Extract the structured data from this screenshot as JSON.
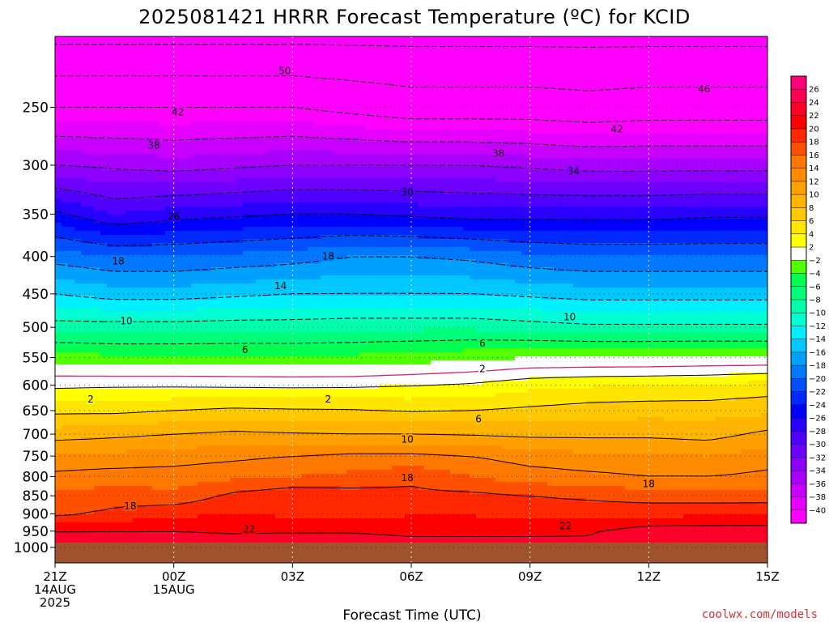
{
  "chart_data": {
    "type": "heatmap",
    "title": "2025081421 HRRR Forecast Temperature (ºC) for KCID",
    "xlabel": "Forecast Time (UTC)",
    "ylabel": "",
    "x_ticks": [
      {
        "hour": 0,
        "lines": [
          "21Z",
          "14AUG",
          "2025"
        ]
      },
      {
        "hour": 3,
        "lines": [
          "00Z",
          "15AUG"
        ]
      },
      {
        "hour": 6,
        "lines": [
          "03Z"
        ]
      },
      {
        "hour": 9,
        "lines": [
          "06Z"
        ]
      },
      {
        "hour": 12,
        "lines": [
          "09Z"
        ]
      },
      {
        "hour": 15,
        "lines": [
          "12Z"
        ]
      },
      {
        "hour": 18,
        "lines": [
          "15Z"
        ]
      }
    ],
    "xlim": [
      0,
      18
    ],
    "y_ticks": [
      250,
      300,
      350,
      400,
      450,
      500,
      550,
      600,
      650,
      700,
      750,
      800,
      850,
      900,
      950,
      1000
    ],
    "ylim": [
      1050,
      200
    ],
    "y_scale": "log-pressure",
    "grid": true,
    "surface_pressure": 985,
    "colorbar": {
      "levels": [
        -42,
        -40,
        -38,
        -36,
        -34,
        -32,
        -30,
        -28,
        -26,
        -24,
        -22,
        -20,
        -18,
        -16,
        -14,
        -12,
        -10,
        -8,
        -6,
        -4,
        -2,
        2,
        4,
        6,
        8,
        10,
        12,
        14,
        16,
        18,
        20,
        22,
        24,
        26,
        28
      ],
      "tick_labels": [
        "-40",
        "-38",
        "-36",
        "-34",
        "-32",
        "-30",
        "-28",
        "-26",
        "-24",
        "-22",
        "-20",
        "-18",
        "-16",
        "-14",
        "-12",
        "-10",
        "-8",
        "-6",
        "-4",
        "-2",
        "2",
        "4",
        "6",
        "8",
        "10",
        "12",
        "14",
        "16",
        "18",
        "20",
        "22",
        "24",
        "26"
      ],
      "colors": [
        "#ff00ff",
        "#e600ff",
        "#c800ff",
        "#aa00ff",
        "#8c00ff",
        "#6e00ff",
        "#5000ff",
        "#2800ff",
        "#0000ff",
        "#0028ff",
        "#0050ff",
        "#0078ff",
        "#00a0ff",
        "#00c8ff",
        "#00f0ff",
        "#00ffd2",
        "#00ffaa",
        "#00ff78",
        "#00ff50",
        "#50ff00",
        "#ffffff",
        "#ffff00",
        "#ffe600",
        "#ffc800",
        "#ffb400",
        "#ffa000",
        "#ff8c00",
        "#ff7800",
        "#ff5000",
        "#ff2800",
        "#ff0000",
        "#ff0028",
        "#ff0050",
        "#ff0078"
      ],
      "surface_color": "#a0522d"
    },
    "hours": [
      0,
      1.5,
      3,
      4.5,
      6,
      7.5,
      9,
      10.5,
      12,
      13.5,
      15,
      16.5,
      18
    ],
    "profiles": [
      {
        "p": 1000,
        "t": [
          23,
          23,
          23,
          23,
          23.5,
          23.5,
          23,
          23,
          23,
          22.5,
          23,
          23,
          23
        ]
      },
      {
        "p": 950,
        "t": [
          22,
          22,
          22,
          21.8,
          21.8,
          21.8,
          21.5,
          21.5,
          21.5,
          21.8,
          23,
          23.2,
          23.2
        ]
      },
      {
        "p": 900,
        "t": [
          17.5,
          18.5,
          19.5,
          20,
          19.6,
          19.5,
          19.8,
          19.8,
          19.5,
          19.5,
          19.5,
          19.5,
          19.6
        ]
      },
      {
        "p": 850,
        "t": [
          16.5,
          17,
          16.5,
          18.5,
          19.5,
          19,
          18.5,
          18.5,
          18,
          17.5,
          17,
          17,
          17
        ]
      },
      {
        "p": 800,
        "t": [
          14.5,
          15,
          15,
          15.5,
          16,
          16.5,
          17.5,
          16,
          15,
          14.5,
          14,
          14,
          14.5
        ]
      },
      {
        "p": 750,
        "t": [
          12.5,
          12.5,
          13,
          13.5,
          14,
          14.5,
          14.5,
          14,
          13,
          12.5,
          12.5,
          12,
          13
        ]
      },
      {
        "p": 700,
        "t": [
          9,
          9.5,
          10,
          10.5,
          10.2,
          10,
          10,
          9.8,
          9.5,
          9.5,
          9.5,
          9.2,
          10.5
        ]
      },
      {
        "p": 650,
        "t": [
          5.5,
          5.5,
          6,
          6.5,
          6.3,
          6.2,
          5.8,
          6,
          6.5,
          7,
          7.2,
          7.2,
          7.5
        ]
      },
      {
        "p": 600,
        "t": [
          1.5,
          1.7,
          1.7,
          1.6,
          1.5,
          1.6,
          1.9,
          2.3,
          3.3,
          3.8,
          4,
          4.2,
          4.8
        ]
      },
      {
        "p": 550,
        "t": [
          -3,
          -3.5,
          -3.5,
          -3.5,
          -3.5,
          -3.5,
          -3,
          -2.5,
          -2,
          -2,
          -2,
          -1.8,
          -1.8
        ]
      },
      {
        "p": 500,
        "t": [
          -9,
          -9,
          -9,
          -8.8,
          -8.8,
          -8.5,
          -8.5,
          -8.5,
          -9,
          -9.5,
          -9.5,
          -9.5,
          -9.5
        ]
      },
      {
        "p": 450,
        "t": [
          -14,
          -15,
          -15,
          -14.5,
          -14,
          -14,
          -14,
          -14,
          -14.5,
          -15,
          -15,
          -15,
          -15
        ]
      },
      {
        "p": 400,
        "t": [
          -19,
          -20,
          -20,
          -19.5,
          -19,
          -18,
          -18,
          -18.5,
          -19.5,
          -20,
          -20,
          -20,
          -20
        ]
      },
      {
        "p": 350,
        "t": [
          -25.5,
          -28,
          -27,
          -26.5,
          -26,
          -26,
          -26.5,
          -27,
          -27,
          -27,
          -27,
          -26.5,
          -26.5
        ]
      },
      {
        "p": 300,
        "t": [
          -34,
          -34.5,
          -35,
          -34.5,
          -34,
          -34,
          -34,
          -34,
          -34.5,
          -35,
          -35,
          -35,
          -35
        ]
      },
      {
        "p": 250,
        "t": [
          -42,
          -42,
          -42,
          -42,
          -42,
          -43,
          -44,
          -44,
          -44,
          -44.5,
          -44,
          -44,
          -44
        ]
      },
      {
        "p": 200,
        "t": [
          -51,
          -51,
          -51,
          -51,
          -51,
          -51,
          -51,
          -51,
          -51,
          -51,
          -51,
          -51,
          -51
        ]
      }
    ],
    "contour_levels_dashed": [
      -50,
      -46,
      -42,
      -38,
      -34,
      -30,
      -26,
      -22,
      -18,
      -14,
      -10,
      -6
    ],
    "contour_levels_solid": [
      2,
      6,
      10,
      14,
      18,
      22
    ],
    "zero_line_color": "#d0207a",
    "contour_labels": [
      {
        "text": "50",
        "hour": 5.8,
        "p": 223
      },
      {
        "text": "46",
        "hour": 16.4,
        "p": 236
      },
      {
        "text": "42",
        "hour": 3.1,
        "p": 254
      },
      {
        "text": "42",
        "hour": 14.2,
        "p": 268
      },
      {
        "text": "38",
        "hour": 2.5,
        "p": 282
      },
      {
        "text": "38",
        "hour": 11.2,
        "p": 289
      },
      {
        "text": "34",
        "hour": 13.1,
        "p": 306
      },
      {
        "text": "30",
        "hour": 8.9,
        "p": 327
      },
      {
        "text": "26",
        "hour": 3.0,
        "p": 353
      },
      {
        "text": "18",
        "hour": 1.6,
        "p": 406
      },
      {
        "text": "18",
        "hour": 6.9,
        "p": 400
      },
      {
        "text": "14",
        "hour": 5.7,
        "p": 439
      },
      {
        "text": "10",
        "hour": 1.8,
        "p": 490
      },
      {
        "text": "10",
        "hour": 13.0,
        "p": 484
      },
      {
        "text": "6",
        "hour": 4.8,
        "p": 537
      },
      {
        "text": "6",
        "hour": 10.8,
        "p": 526
      },
      {
        "text": "2",
        "hour": 10.8,
        "p": 570
      },
      {
        "text": "2",
        "hour": 0.9,
        "p": 627
      },
      {
        "text": "2",
        "hour": 6.9,
        "p": 627
      },
      {
        "text": "6",
        "hour": 10.7,
        "p": 668
      },
      {
        "text": "10",
        "hour": 8.9,
        "p": 712
      },
      {
        "text": "18",
        "hour": 8.9,
        "p": 803
      },
      {
        "text": "18",
        "hour": 1.9,
        "p": 878
      },
      {
        "text": "18",
        "hour": 15.0,
        "p": 819
      },
      {
        "text": "22",
        "hour": 4.9,
        "p": 945
      },
      {
        "text": "22",
        "hour": 12.9,
        "p": 935
      }
    ]
  },
  "credit": "coolwx.com/models"
}
